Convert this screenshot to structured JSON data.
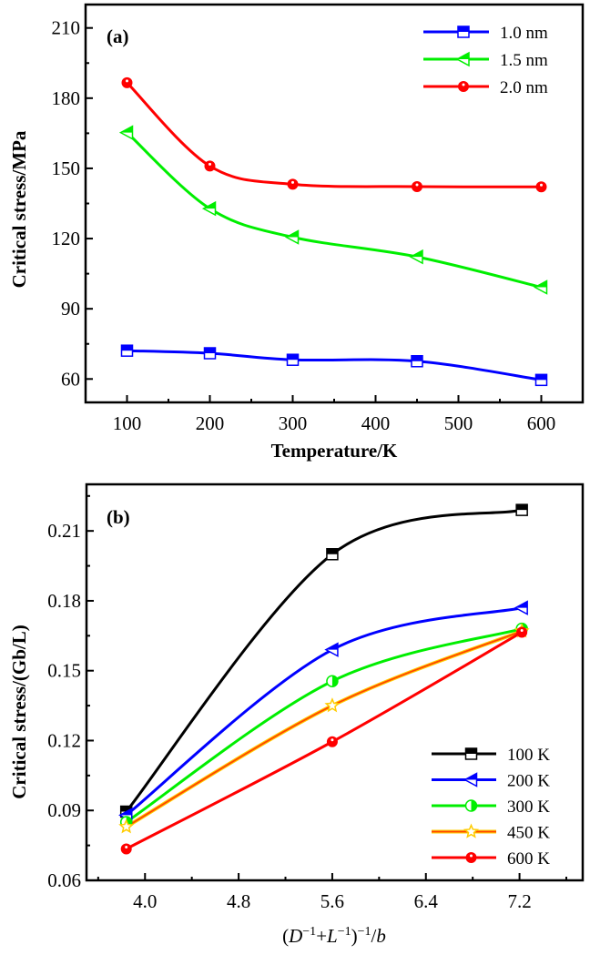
{
  "chart_data": [
    {
      "panel": "(a)",
      "type": "line",
      "title": "",
      "xlabel": "Temperature/K",
      "ylabel": "Critical stress/MPa",
      "xlim": [
        50,
        650
      ],
      "ylim": [
        50,
        220
      ],
      "xticks": [
        100,
        200,
        300,
        400,
        500,
        600
      ],
      "xtick_labels": [
        "100",
        "200",
        "300",
        "400",
        "500",
        "600"
      ],
      "yticks": [
        60,
        90,
        120,
        150,
        180,
        210
      ],
      "ytick_labels": [
        "60",
        "90",
        "120",
        "150",
        "180",
        "210"
      ],
      "grid": false,
      "legend_position": "top-right",
      "x": [
        100,
        200,
        300,
        450,
        600
      ],
      "series": [
        {
          "name": "1.0 nm",
          "color": "#0000ff",
          "marker": "square",
          "values": [
            72.1,
            71.0,
            68.2,
            67.6,
            59.6
          ]
        },
        {
          "name": "1.5 nm",
          "color": "#00ee00",
          "marker": "triangle-left",
          "values": [
            165.3,
            132.8,
            120.6,
            112.2,
            99.2
          ]
        },
        {
          "name": "2.0 nm",
          "color": "#ff0000",
          "marker": "circle",
          "values": [
            186.6,
            151.0,
            143.2,
            142.2,
            142.1
          ]
        }
      ]
    },
    {
      "panel": "(b)",
      "type": "line",
      "title": "",
      "xlabel": "(D⁻¹+L⁻¹)⁻¹/b",
      "ylabel": "Critical stress/(Gb/L)",
      "xlim": [
        3.5,
        7.74
      ],
      "ylim": [
        0.06,
        0.23
      ],
      "xticks": [
        4.0,
        4.8,
        5.6,
        6.4,
        7.2
      ],
      "xtick_labels": [
        "4.0",
        "4.8",
        "5.6",
        "6.4",
        "7.2"
      ],
      "yticks": [
        0.06,
        0.09,
        0.12,
        0.15,
        0.18,
        0.21
      ],
      "ytick_labels": [
        "0.06",
        "0.09",
        "0.12",
        "0.15",
        "0.18",
        "0.21"
      ],
      "grid": false,
      "legend_position": "bottom-right",
      "x": [
        3.84,
        5.6,
        7.22
      ],
      "series": [
        {
          "name": "100 K",
          "color": "#000000",
          "marker": "square",
          "values": [
            0.0895,
            0.2,
            0.219
          ]
        },
        {
          "name": "200 K",
          "color": "#0000ff",
          "marker": "triangle-left",
          "values": [
            0.088,
            0.159,
            0.177
          ]
        },
        {
          "name": "300 K",
          "color": "#00ee00",
          "marker": "circle-half",
          "values": [
            0.085,
            0.1455,
            0.168
          ]
        },
        {
          "name": "450 K",
          "color": "#ff6600",
          "marker": "star",
          "values": [
            0.083,
            0.135,
            0.167
          ]
        },
        {
          "name": "600 K",
          "color": "#ff0000",
          "marker": "circle",
          "values": [
            0.0735,
            0.1195,
            0.1665
          ]
        }
      ]
    }
  ]
}
